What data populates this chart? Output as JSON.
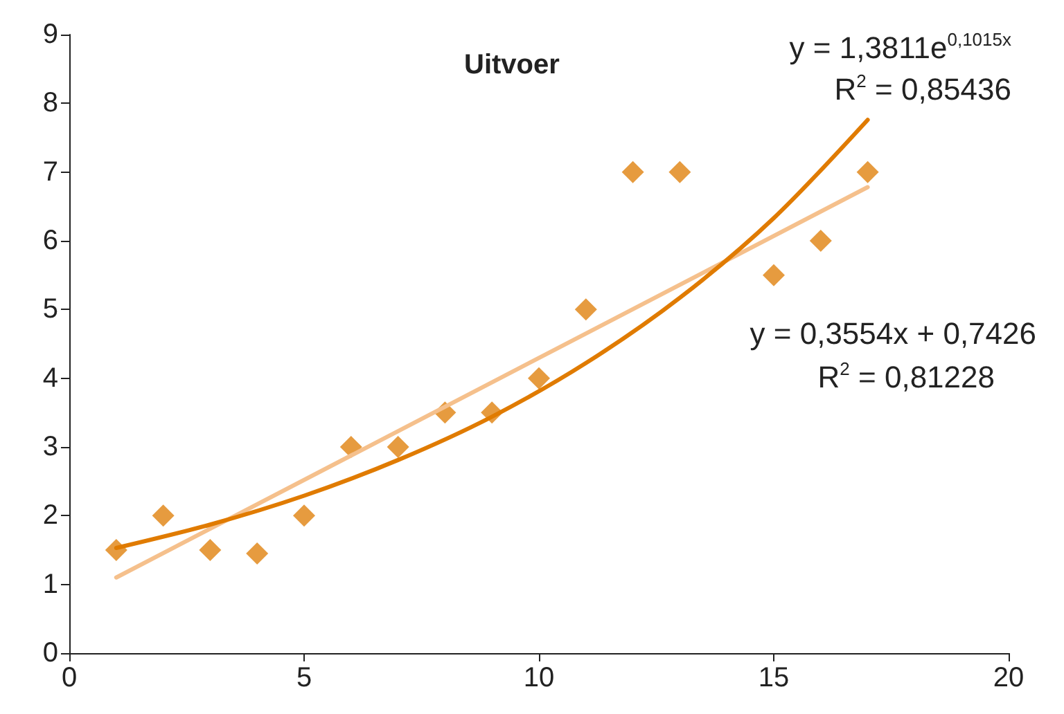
{
  "chart_data": {
    "type": "scatter",
    "title": "Uitvoer",
    "grid": false,
    "xlim": [
      0,
      20
    ],
    "xticks": [
      0,
      5,
      10,
      15,
      20
    ],
    "ylim": [
      0,
      9
    ],
    "yticks": [
      0,
      1,
      2,
      3,
      4,
      5,
      6,
      7,
      8,
      9
    ],
    "series": [
      {
        "marker": "diamond",
        "color": "#e0820f",
        "x": [
          1,
          2,
          3,
          4,
          5,
          6,
          7,
          8,
          9,
          10,
          11,
          12,
          13,
          15,
          16,
          17
        ],
        "values": [
          1.5,
          2.0,
          1.5,
          1.45,
          2.0,
          3.0,
          3.0,
          3.5,
          3.5,
          4.0,
          5.0,
          7.0,
          7.0,
          5.5,
          6.0,
          7.0
        ]
      },
      {
        "type": "line",
        "marker": "none",
        "color": "#f5c08c",
        "x": [
          1,
          17
        ],
        "values": [
          1.1,
          6.78
        ]
      },
      {
        "type": "line",
        "marker": "none",
        "color": "#e07b00",
        "x": [
          1,
          3,
          5,
          7,
          9,
          11,
          13,
          15,
          17
        ],
        "values": [
          1.53,
          1.87,
          2.29,
          2.81,
          3.44,
          4.22,
          5.17,
          6.33,
          7.76
        ]
      }
    ],
    "annotations": [
      "y = 1,3811e$^{0,1015x}$",
      "R$^{2}$ = 0,85436",
      "y = 0,3554x + 0,7426",
      "R$^{2}$ = 0,81228"
    ]
  }
}
